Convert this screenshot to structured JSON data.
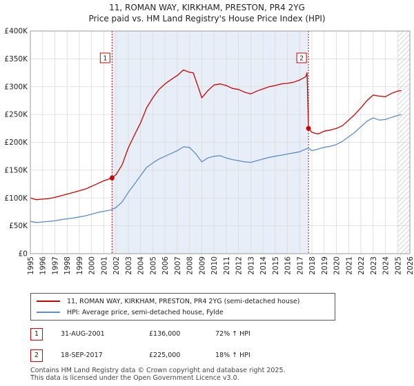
{
  "title_line1": "11, ROMAN WAY, KIRKHAM, PRESTON, PR4 2YG",
  "title_line2": "Price paid vs. HM Land Registry's House Price Index (HPI)",
  "chart_data": {
    "type": "line",
    "title": "11, ROMAN WAY, KIRKHAM, PRESTON, PR4 2YG — Price paid vs. HM Land Registry's House Price Index (HPI)",
    "xlim": [
      1995,
      2026
    ],
    "ylim": [
      0,
      400000
    ],
    "y_ticks": [
      {
        "value": 0,
        "label": "£0"
      },
      {
        "value": 50000,
        "label": "£50K"
      },
      {
        "value": 100000,
        "label": "£100K"
      },
      {
        "value": 150000,
        "label": "£150K"
      },
      {
        "value": 200000,
        "label": "£200K"
      },
      {
        "value": 250000,
        "label": "£250K"
      },
      {
        "value": 300000,
        "label": "£300K"
      },
      {
        "value": 350000,
        "label": "£350K"
      },
      {
        "value": 400000,
        "label": "£400K"
      }
    ],
    "x_ticks": [
      "1995",
      "1996",
      "1997",
      "1998",
      "1999",
      "2000",
      "2001",
      "2002",
      "2003",
      "2004",
      "2005",
      "2006",
      "2007",
      "2008",
      "2009",
      "2010",
      "2011",
      "2012",
      "2013",
      "2014",
      "2015",
      "2016",
      "2017",
      "2018",
      "2019",
      "2020",
      "2021",
      "2022",
      "2023",
      "2024",
      "2025",
      "2026"
    ],
    "grid": true,
    "shaded_period": [
      2001.67,
      2017.72
    ],
    "hatched_from": 2025.0,
    "series": [
      {
        "name": "11, ROMAN WAY, KIRKHAM, PRESTON, PR4 2YG (semi-detached house)",
        "color": "#cc0000",
        "points": [
          [
            1995.0,
            100000
          ],
          [
            1995.5,
            97000
          ],
          [
            1996.0,
            98000
          ],
          [
            1996.5,
            99000
          ],
          [
            1997.0,
            101000
          ],
          [
            1997.5,
            104000
          ],
          [
            1998.0,
            107000
          ],
          [
            1998.5,
            110000
          ],
          [
            1999.0,
            113000
          ],
          [
            1999.5,
            116000
          ],
          [
            2000.0,
            121000
          ],
          [
            2000.5,
            126000
          ],
          [
            2001.0,
            131000
          ],
          [
            2001.67,
            136000
          ],
          [
            2002.0,
            142000
          ],
          [
            2002.5,
            160000
          ],
          [
            2003.0,
            190000
          ],
          [
            2003.5,
            213000
          ],
          [
            2004.0,
            235000
          ],
          [
            2004.5,
            262000
          ],
          [
            2005.0,
            280000
          ],
          [
            2005.5,
            295000
          ],
          [
            2006.0,
            305000
          ],
          [
            2006.5,
            313000
          ],
          [
            2007.0,
            320000
          ],
          [
            2007.5,
            330000
          ],
          [
            2008.0,
            326000
          ],
          [
            2008.3,
            325000
          ],
          [
            2008.7,
            300000
          ],
          [
            2009.0,
            280000
          ],
          [
            2009.5,
            293000
          ],
          [
            2010.0,
            303000
          ],
          [
            2010.5,
            305000
          ],
          [
            2011.0,
            302000
          ],
          [
            2011.5,
            297000
          ],
          [
            2012.0,
            295000
          ],
          [
            2012.5,
            290000
          ],
          [
            2013.0,
            287000
          ],
          [
            2013.5,
            292000
          ],
          [
            2014.0,
            296000
          ],
          [
            2014.5,
            300000
          ],
          [
            2015.0,
            302000
          ],
          [
            2015.5,
            305000
          ],
          [
            2016.0,
            306000
          ],
          [
            2016.5,
            308000
          ],
          [
            2017.0,
            312000
          ],
          [
            2017.5,
            318000
          ],
          [
            2017.6,
            325000
          ],
          [
            2017.72,
            225000
          ],
          [
            2018.0,
            218000
          ],
          [
            2018.5,
            215000
          ],
          [
            2019.0,
            220000
          ],
          [
            2019.5,
            222000
          ],
          [
            2020.0,
            225000
          ],
          [
            2020.5,
            230000
          ],
          [
            2021.0,
            240000
          ],
          [
            2021.5,
            250000
          ],
          [
            2022.0,
            262000
          ],
          [
            2022.5,
            275000
          ],
          [
            2023.0,
            285000
          ],
          [
            2023.5,
            283000
          ],
          [
            2024.0,
            282000
          ],
          [
            2024.5,
            288000
          ],
          [
            2025.0,
            292000
          ],
          [
            2025.3,
            293000
          ]
        ]
      },
      {
        "name": "HPI: Average price, semi-detached house, Fylde",
        "color": "#5b8dc8",
        "points": [
          [
            1995.0,
            58000
          ],
          [
            1995.5,
            56000
          ],
          [
            1996.0,
            57000
          ],
          [
            1996.5,
            58000
          ],
          [
            1997.0,
            59000
          ],
          [
            1997.5,
            61000
          ],
          [
            1998.0,
            62500
          ],
          [
            1998.5,
            64000
          ],
          [
            1999.0,
            66000
          ],
          [
            1999.5,
            68000
          ],
          [
            2000.0,
            71000
          ],
          [
            2000.5,
            74000
          ],
          [
            2001.0,
            76000
          ],
          [
            2001.67,
            79000
          ],
          [
            2002.0,
            83000
          ],
          [
            2002.5,
            93000
          ],
          [
            2003.0,
            110000
          ],
          [
            2003.5,
            125000
          ],
          [
            2004.0,
            140000
          ],
          [
            2004.5,
            155000
          ],
          [
            2005.0,
            163000
          ],
          [
            2005.5,
            170000
          ],
          [
            2006.0,
            175000
          ],
          [
            2006.5,
            180000
          ],
          [
            2007.0,
            185000
          ],
          [
            2007.5,
            192000
          ],
          [
            2008.0,
            191000
          ],
          [
            2008.5,
            180000
          ],
          [
            2009.0,
            165000
          ],
          [
            2009.5,
            172000
          ],
          [
            2010.0,
            175000
          ],
          [
            2010.5,
            176000
          ],
          [
            2011.0,
            172000
          ],
          [
            2011.5,
            169000
          ],
          [
            2012.0,
            167000
          ],
          [
            2012.5,
            165000
          ],
          [
            2013.0,
            164000
          ],
          [
            2013.5,
            167000
          ],
          [
            2014.0,
            170000
          ],
          [
            2014.5,
            173000
          ],
          [
            2015.0,
            175000
          ],
          [
            2015.5,
            177000
          ],
          [
            2016.0,
            179000
          ],
          [
            2016.5,
            181000
          ],
          [
            2017.0,
            183000
          ],
          [
            2017.72,
            190000
          ],
          [
            2018.0,
            185000
          ],
          [
            2018.5,
            188000
          ],
          [
            2019.0,
            191000
          ],
          [
            2019.5,
            193000
          ],
          [
            2020.0,
            196000
          ],
          [
            2020.5,
            202000
          ],
          [
            2021.0,
            210000
          ],
          [
            2021.5,
            218000
          ],
          [
            2022.0,
            228000
          ],
          [
            2022.5,
            238000
          ],
          [
            2023.0,
            244000
          ],
          [
            2023.5,
            240000
          ],
          [
            2024.0,
            241000
          ],
          [
            2024.5,
            245000
          ],
          [
            2025.0,
            248000
          ],
          [
            2025.3,
            250000
          ]
        ]
      }
    ],
    "sales": [
      {
        "marker": "1",
        "x": 2001.67,
        "y": 136000,
        "date": "31-AUG-2001",
        "price": "£136,000",
        "hpi": "72% ↑ HPI"
      },
      {
        "marker": "2",
        "x": 2017.72,
        "y": 225000,
        "date": "18-SEP-2017",
        "price": "£225,000",
        "hpi": "18% ↑ HPI"
      }
    ]
  },
  "legend": {
    "property": "11, ROMAN WAY, KIRKHAM, PRESTON, PR4 2YG (semi-detached house)",
    "hpi": "HPI: Average price, semi-detached house, Fylde",
    "property_color": "#cc0000",
    "hpi_color": "#5b8dc8"
  },
  "footer": {
    "line1": "Contains HM Land Registry data © Crown copyright and database right 2025.",
    "line2": "This data is licensed under the Open Government Licence v3.0."
  }
}
